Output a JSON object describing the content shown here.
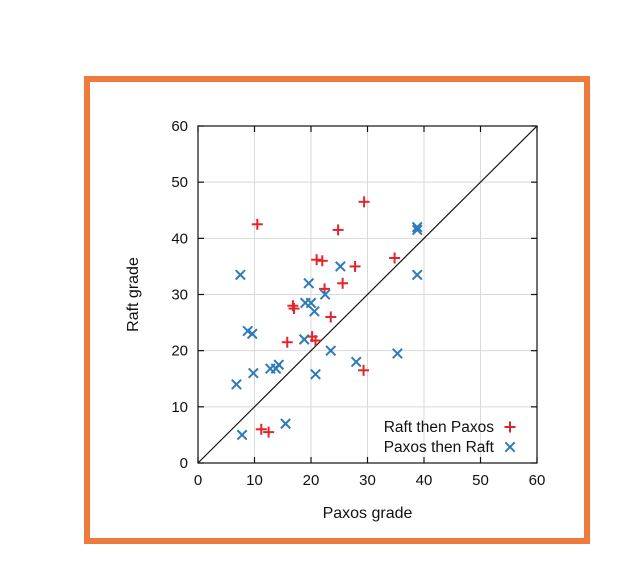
{
  "chart_data": {
    "type": "scatter",
    "title": "",
    "xlabel": "Paxos grade",
    "ylabel": "Raft grade",
    "xlim": [
      0,
      60
    ],
    "ylim": [
      0,
      60
    ],
    "xticks": [
      0,
      10,
      20,
      30,
      40,
      50,
      60
    ],
    "yticks": [
      0,
      10,
      20,
      30,
      40,
      50,
      60
    ],
    "grid": true,
    "diagonal": {
      "from": [
        0,
        0
      ],
      "to": [
        60,
        60
      ]
    },
    "legend": {
      "placement": "bottom-right"
    },
    "series": [
      {
        "name": "Raft then Paxos",
        "marker": "plus",
        "color": "#e0262a",
        "points": [
          {
            "x": 10.5,
            "y": 42.5
          },
          {
            "x": 11.2,
            "y": 6.0
          },
          {
            "x": 12.5,
            "y": 5.5
          },
          {
            "x": 15.8,
            "y": 21.5
          },
          {
            "x": 16.8,
            "y": 28.0
          },
          {
            "x": 17.0,
            "y": 27.5
          },
          {
            "x": 20.2,
            "y": 22.5
          },
          {
            "x": 20.8,
            "y": 21.8
          },
          {
            "x": 21.0,
            "y": 36.2
          },
          {
            "x": 22.0,
            "y": 36.0
          },
          {
            "x": 22.4,
            "y": 31.0
          },
          {
            "x": 23.5,
            "y": 26.0
          },
          {
            "x": 24.8,
            "y": 41.5
          },
          {
            "x": 25.6,
            "y": 32.0
          },
          {
            "x": 27.8,
            "y": 35.0
          },
          {
            "x": 29.4,
            "y": 46.5
          },
          {
            "x": 29.3,
            "y": 16.5
          },
          {
            "x": 34.8,
            "y": 36.5
          }
        ]
      },
      {
        "name": "Paxos then Raft",
        "marker": "cross",
        "color": "#2f7ab8",
        "points": [
          {
            "x": 6.8,
            "y": 14.0
          },
          {
            "x": 7.5,
            "y": 33.5
          },
          {
            "x": 7.8,
            "y": 5.0
          },
          {
            "x": 8.8,
            "y": 23.5
          },
          {
            "x": 9.6,
            "y": 23.0
          },
          {
            "x": 9.8,
            "y": 16.0
          },
          {
            "x": 12.8,
            "y": 16.8
          },
          {
            "x": 13.8,
            "y": 16.8
          },
          {
            "x": 14.3,
            "y": 17.5
          },
          {
            "x": 15.5,
            "y": 7.0
          },
          {
            "x": 18.8,
            "y": 22.0
          },
          {
            "x": 19.0,
            "y": 28.5
          },
          {
            "x": 19.6,
            "y": 32.0
          },
          {
            "x": 20.0,
            "y": 28.5
          },
          {
            "x": 20.6,
            "y": 27.0
          },
          {
            "x": 20.8,
            "y": 15.8
          },
          {
            "x": 22.5,
            "y": 30.0
          },
          {
            "x": 23.5,
            "y": 20.0
          },
          {
            "x": 25.2,
            "y": 35.0
          },
          {
            "x": 28.0,
            "y": 18.0
          },
          {
            "x": 35.3,
            "y": 19.5
          },
          {
            "x": 38.8,
            "y": 42.0
          },
          {
            "x": 38.8,
            "y": 41.5
          },
          {
            "x": 38.8,
            "y": 33.5
          }
        ]
      }
    ]
  }
}
